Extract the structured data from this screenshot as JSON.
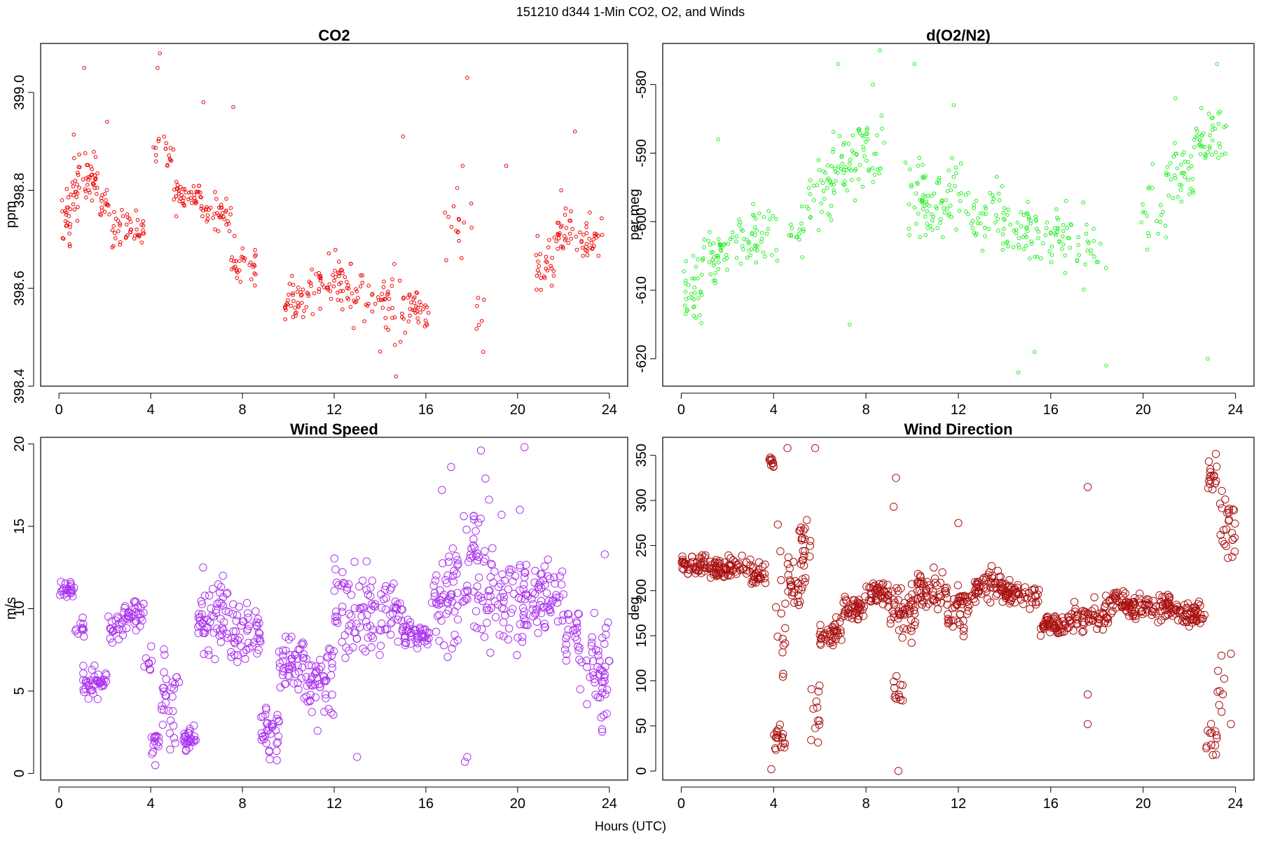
{
  "figure": {
    "suptitle": "151210   d344   1-Min CO2, O2, and Winds",
    "xlabel": "Hours (UTC)"
  },
  "chart_data": [
    {
      "id": "co2",
      "type": "scatter",
      "title": "CO2",
      "ylabel": "ppm",
      "xlabel": "",
      "color": "#ee0000",
      "marker_size": "small",
      "xlim": [
        -0.8,
        24.8
      ],
      "ylim": [
        398.4,
        399.1
      ],
      "xticks": [
        0,
        4,
        8,
        12,
        16,
        20,
        24
      ],
      "yticks": [
        398.4,
        398.6,
        398.8,
        399.0
      ],
      "ytick_labels": [
        "398.4",
        "398.6",
        "398.8",
        "399.0"
      ],
      "segments": [
        {
          "x0": 0.1,
          "x1": 0.5,
          "lo": 398.64,
          "hi": 398.83,
          "n": 22
        },
        {
          "x0": 0.5,
          "x1": 1.0,
          "lo": 398.68,
          "hi": 398.92,
          "n": 22
        },
        {
          "x0": 1.0,
          "x1": 1.7,
          "lo": 398.74,
          "hi": 398.9,
          "n": 32
        },
        {
          "x0": 1.7,
          "x1": 2.2,
          "lo": 398.72,
          "hi": 398.82,
          "n": 16
        },
        {
          "x0": 2.3,
          "x1": 3.0,
          "lo": 398.65,
          "hi": 398.8,
          "n": 22
        },
        {
          "x0": 3.0,
          "x1": 3.8,
          "lo": 398.66,
          "hi": 398.78,
          "n": 22
        },
        {
          "x0": 4.1,
          "x1": 5.0,
          "lo": 398.82,
          "hi": 398.95,
          "n": 18
        },
        {
          "x0": 5.0,
          "x1": 6.2,
          "lo": 398.74,
          "hi": 398.84,
          "n": 42
        },
        {
          "x0": 6.2,
          "x1": 7.5,
          "lo": 398.7,
          "hi": 398.82,
          "n": 40
        },
        {
          "x0": 7.5,
          "x1": 8.6,
          "lo": 398.58,
          "hi": 398.72,
          "n": 32
        },
        {
          "x0": 9.8,
          "x1": 11.0,
          "lo": 398.5,
          "hi": 398.64,
          "n": 40
        },
        {
          "x0": 11.0,
          "x1": 12.5,
          "lo": 398.52,
          "hi": 398.7,
          "n": 44
        },
        {
          "x0": 12.5,
          "x1": 14.0,
          "lo": 398.5,
          "hi": 398.68,
          "n": 32
        },
        {
          "x0": 14.0,
          "x1": 15.2,
          "lo": 398.45,
          "hi": 398.68,
          "n": 32
        },
        {
          "x0": 15.2,
          "x1": 16.2,
          "lo": 398.49,
          "hi": 398.62,
          "n": 32
        },
        {
          "x0": 16.8,
          "x1": 18.0,
          "lo": 398.62,
          "hi": 398.85,
          "n": 16
        },
        {
          "x0": 18.0,
          "x1": 18.6,
          "lo": 398.47,
          "hi": 398.6,
          "n": 6
        },
        {
          "x0": 20.8,
          "x1": 21.6,
          "lo": 398.56,
          "hi": 398.72,
          "n": 26
        },
        {
          "x0": 21.6,
          "x1": 22.6,
          "lo": 398.66,
          "hi": 398.79,
          "n": 30
        },
        {
          "x0": 22.6,
          "x1": 23.7,
          "lo": 398.62,
          "hi": 398.78,
          "n": 30
        }
      ],
      "points": [
        [
          1.1,
          399.05
        ],
        [
          4.4,
          399.08
        ],
        [
          4.3,
          399.05
        ],
        [
          6.3,
          398.98
        ],
        [
          7.6,
          398.97
        ],
        [
          15.0,
          398.91
        ],
        [
          17.8,
          399.03
        ],
        [
          2.1,
          398.94
        ],
        [
          19.5,
          398.85
        ],
        [
          22.5,
          398.92
        ],
        [
          14.7,
          398.42
        ],
        [
          18.5,
          398.47
        ],
        [
          17.6,
          398.85
        ],
        [
          21.9,
          398.8
        ]
      ]
    },
    {
      "id": "o2",
      "type": "scatter",
      "title": "d(O2/N2)",
      "ylabel": "per meg",
      "xlabel": "",
      "color": "#22ee22",
      "marker_size": "small",
      "xlim": [
        -0.8,
        24.8
      ],
      "ylim": [
        -624,
        -574
      ],
      "xticks": [
        0,
        4,
        8,
        12,
        16,
        20,
        24
      ],
      "yticks": [
        -620,
        -610,
        -600,
        -590,
        -580
      ],
      "ytick_labels": [
        "-620",
        "-610",
        "-600",
        "-590",
        "-580"
      ],
      "segments": [
        {
          "x0": 0.1,
          "x1": 0.9,
          "lo": -617,
          "hi": -601,
          "n": 34
        },
        {
          "x0": 0.9,
          "x1": 2.0,
          "lo": -612,
          "hi": -598,
          "n": 40
        },
        {
          "x0": 2.0,
          "x1": 3.2,
          "lo": -608,
          "hi": -596,
          "n": 32
        },
        {
          "x0": 3.2,
          "x1": 4.2,
          "lo": -612,
          "hi": -595,
          "n": 22
        },
        {
          "x0": 4.6,
          "x1": 5.5,
          "lo": -608,
          "hi": -594,
          "n": 16
        },
        {
          "x0": 5.5,
          "x1": 6.5,
          "lo": -605,
          "hi": -588,
          "n": 30
        },
        {
          "x0": 6.5,
          "x1": 7.6,
          "lo": -600,
          "hi": -584,
          "n": 42
        },
        {
          "x0": 7.6,
          "x1": 8.8,
          "lo": -598,
          "hi": -582,
          "n": 34
        },
        {
          "x0": 9.7,
          "x1": 11.0,
          "lo": -605,
          "hi": -588,
          "n": 46
        },
        {
          "x0": 11.0,
          "x1": 12.5,
          "lo": -604,
          "hi": -588,
          "n": 40
        },
        {
          "x0": 12.5,
          "x1": 14.0,
          "lo": -606,
          "hi": -592,
          "n": 40
        },
        {
          "x0": 14.0,
          "x1": 15.5,
          "lo": -608,
          "hi": -594,
          "n": 44
        },
        {
          "x0": 15.5,
          "x1": 17.0,
          "lo": -610,
          "hi": -595,
          "n": 36
        },
        {
          "x0": 17.0,
          "x1": 18.4,
          "lo": -611,
          "hi": -596,
          "n": 22
        },
        {
          "x0": 19.9,
          "x1": 21.0,
          "lo": -608,
          "hi": -590,
          "n": 20
        },
        {
          "x0": 21.0,
          "x1": 22.2,
          "lo": -600,
          "hi": -586,
          "n": 38
        },
        {
          "x0": 22.2,
          "x1": 23.6,
          "lo": -595,
          "hi": -582,
          "n": 44
        }
      ],
      "points": [
        [
          6.8,
          -577
        ],
        [
          8.6,
          -575
        ],
        [
          10.1,
          -577
        ],
        [
          8.3,
          -580
        ],
        [
          14.6,
          -622
        ],
        [
          18.4,
          -621
        ],
        [
          22.8,
          -620
        ],
        [
          21.4,
          -582
        ],
        [
          23.2,
          -577
        ],
        [
          15.3,
          -619
        ],
        [
          7.3,
          -615
        ],
        [
          1.6,
          -588
        ],
        [
          11.8,
          -583
        ]
      ]
    },
    {
      "id": "wspd",
      "type": "scatter",
      "title": "Wind Speed",
      "ylabel": "m/s",
      "xlabel": "",
      "color": "#aa33ee",
      "marker_size": "large",
      "xlim": [
        -0.8,
        24.8
      ],
      "ylim": [
        -0.4,
        20.4
      ],
      "xticks": [
        0,
        4,
        8,
        12,
        16,
        20,
        24
      ],
      "yticks": [
        0,
        5,
        10,
        15,
        20
      ],
      "ytick_labels": [
        "0",
        "5",
        "10",
        "15",
        "20"
      ],
      "segments": [
        {
          "x0": 0.0,
          "x1": 0.7,
          "lo": 10.2,
          "hi": 12.1,
          "n": 24
        },
        {
          "x0": 0.7,
          "x1": 1.1,
          "lo": 8.0,
          "hi": 9.8,
          "n": 12
        },
        {
          "x0": 1.0,
          "x1": 2.1,
          "lo": 3.9,
          "hi": 7.0,
          "n": 40
        },
        {
          "x0": 2.1,
          "x1": 2.8,
          "lo": 7.5,
          "hi": 10.0,
          "n": 20
        },
        {
          "x0": 2.8,
          "x1": 3.7,
          "lo": 8.4,
          "hi": 11.0,
          "n": 34
        },
        {
          "x0": 3.7,
          "x1": 4.1,
          "lo": 5.5,
          "hi": 8.5,
          "n": 8
        },
        {
          "x0": 4.0,
          "x1": 4.4,
          "lo": 0.6,
          "hi": 3.0,
          "n": 14
        },
        {
          "x0": 4.4,
          "x1": 5.3,
          "lo": 0.5,
          "hi": 8.0,
          "n": 30
        },
        {
          "x0": 5.4,
          "x1": 6.0,
          "lo": 1.0,
          "hi": 3.2,
          "n": 28
        },
        {
          "x0": 6.0,
          "x1": 7.5,
          "lo": 6.0,
          "hi": 13.0,
          "n": 60
        },
        {
          "x0": 7.5,
          "x1": 8.8,
          "lo": 5.5,
          "hi": 11.5,
          "n": 48
        },
        {
          "x0": 8.8,
          "x1": 9.6,
          "lo": 0.6,
          "hi": 4.5,
          "n": 34
        },
        {
          "x0": 9.6,
          "x1": 10.8,
          "lo": 4.0,
          "hi": 9.0,
          "n": 50
        },
        {
          "x0": 10.8,
          "x1": 12.0,
          "lo": 2.2,
          "hi": 9.0,
          "n": 50
        },
        {
          "x0": 12.0,
          "x1": 13.5,
          "lo": 5.0,
          "hi": 14.5,
          "n": 56
        },
        {
          "x0": 13.5,
          "x1": 15.0,
          "lo": 6.5,
          "hi": 12.5,
          "n": 50
        },
        {
          "x0": 15.0,
          "x1": 16.2,
          "lo": 6.5,
          "hi": 10.0,
          "n": 44
        },
        {
          "x0": 16.2,
          "x1": 17.5,
          "lo": 5.5,
          "hi": 15.5,
          "n": 54
        },
        {
          "x0": 17.5,
          "x1": 19.0,
          "lo": 6.0,
          "hi": 18.0,
          "n": 60
        },
        {
          "x0": 19.0,
          "x1": 20.5,
          "lo": 6.0,
          "hi": 14.5,
          "n": 56
        },
        {
          "x0": 20.5,
          "x1": 22.0,
          "lo": 7.5,
          "hi": 13.5,
          "n": 56
        },
        {
          "x0": 22.0,
          "x1": 22.7,
          "lo": 6.0,
          "hi": 11.5,
          "n": 24
        },
        {
          "x0": 22.7,
          "x1": 24.0,
          "lo": 1.5,
          "hi": 10.0,
          "n": 50
        }
      ],
      "points": [
        [
          18.4,
          19.6
        ],
        [
          20.3,
          19.8
        ],
        [
          17.1,
          18.6
        ],
        [
          18.6,
          17.9
        ],
        [
          13.0,
          1.0
        ],
        [
          17.7,
          0.7
        ],
        [
          17.8,
          1.0
        ],
        [
          4.2,
          0.5
        ],
        [
          9.5,
          0.8
        ],
        [
          23.8,
          13.3
        ],
        [
          16.7,
          17.2
        ],
        [
          19.3,
          15.7
        ],
        [
          20.1,
          16.0
        ]
      ]
    },
    {
      "id": "wdir",
      "type": "scatter",
      "title": "Wind Direction",
      "ylabel": "deg",
      "xlabel": "",
      "color": "#aa1111",
      "marker_size": "large",
      "xlim": [
        -0.8,
        24.8
      ],
      "ylim": [
        -10,
        370
      ],
      "xticks": [
        0,
        4,
        8,
        12,
        16,
        20,
        24
      ],
      "yticks": [
        0,
        50,
        100,
        150,
        200,
        250,
        300,
        350
      ],
      "ytick_labels": [
        "0",
        "50",
        "100",
        "150",
        "200",
        "250",
        "300",
        "350"
      ],
      "segments": [
        {
          "x0": 0.0,
          "x1": 1.5,
          "lo": 212,
          "hi": 245,
          "n": 60
        },
        {
          "x0": 1.5,
          "x1": 3.0,
          "lo": 205,
          "hi": 245,
          "n": 56
        },
        {
          "x0": 3.0,
          "x1": 3.7,
          "lo": 198,
          "hi": 235,
          "n": 26
        },
        {
          "x0": 3.8,
          "x1": 4.0,
          "lo": 330,
          "hi": 352,
          "n": 10
        },
        {
          "x0": 4.0,
          "x1": 4.5,
          "lo": 15,
          "hi": 60,
          "n": 18
        },
        {
          "x0": 4.1,
          "x1": 4.6,
          "lo": 60,
          "hi": 320,
          "n": 14
        },
        {
          "x0": 4.6,
          "x1": 5.4,
          "lo": 170,
          "hi": 260,
          "n": 34
        },
        {
          "x0": 5.1,
          "x1": 5.6,
          "lo": 200,
          "hi": 300,
          "n": 14
        },
        {
          "x0": 5.6,
          "x1": 6.0,
          "lo": 5,
          "hi": 120,
          "n": 12
        },
        {
          "x0": 6.0,
          "x1": 7.0,
          "lo": 130,
          "hi": 175,
          "n": 40
        },
        {
          "x0": 7.0,
          "x1": 8.0,
          "lo": 160,
          "hi": 200,
          "n": 44
        },
        {
          "x0": 8.0,
          "x1": 9.0,
          "lo": 178,
          "hi": 215,
          "n": 44
        },
        {
          "x0": 9.0,
          "x1": 10.2,
          "lo": 130,
          "hi": 220,
          "n": 50
        },
        {
          "x0": 9.2,
          "x1": 9.6,
          "lo": 55,
          "hi": 120,
          "n": 12
        },
        {
          "x0": 10.2,
          "x1": 11.5,
          "lo": 170,
          "hi": 232,
          "n": 52
        },
        {
          "x0": 11.5,
          "x1": 12.5,
          "lo": 140,
          "hi": 220,
          "n": 44
        },
        {
          "x0": 12.5,
          "x1": 14.0,
          "lo": 180,
          "hi": 228,
          "n": 58
        },
        {
          "x0": 14.0,
          "x1": 15.5,
          "lo": 175,
          "hi": 215,
          "n": 56
        },
        {
          "x0": 15.5,
          "x1": 17.0,
          "lo": 145,
          "hi": 180,
          "n": 60
        },
        {
          "x0": 17.0,
          "x1": 18.5,
          "lo": 150,
          "hi": 200,
          "n": 52
        },
        {
          "x0": 18.5,
          "x1": 19.5,
          "lo": 165,
          "hi": 210,
          "n": 40
        },
        {
          "x0": 19.5,
          "x1": 21.5,
          "lo": 160,
          "hi": 205,
          "n": 78
        },
        {
          "x0": 21.5,
          "x1": 22.7,
          "lo": 150,
          "hi": 195,
          "n": 48
        },
        {
          "x0": 22.7,
          "x1": 23.2,
          "lo": 300,
          "hi": 358,
          "n": 16
        },
        {
          "x0": 22.7,
          "x1": 23.3,
          "lo": 0,
          "hi": 60,
          "n": 14
        },
        {
          "x0": 23.3,
          "x1": 24.0,
          "lo": 200,
          "hi": 350,
          "n": 26
        },
        {
          "x0": 23.2,
          "x1": 23.6,
          "lo": 40,
          "hi": 140,
          "n": 8
        }
      ],
      "points": [
        [
          4.6,
          358
        ],
        [
          5.8,
          358
        ],
        [
          9.3,
          325
        ],
        [
          17.6,
          315
        ],
        [
          12.0,
          275
        ],
        [
          9.2,
          293
        ],
        [
          9.4,
          0
        ],
        [
          3.9,
          2
        ],
        [
          17.6,
          52
        ],
        [
          17.6,
          85
        ],
        [
          23.8,
          52
        ],
        [
          23.8,
          130
        ]
      ]
    }
  ]
}
